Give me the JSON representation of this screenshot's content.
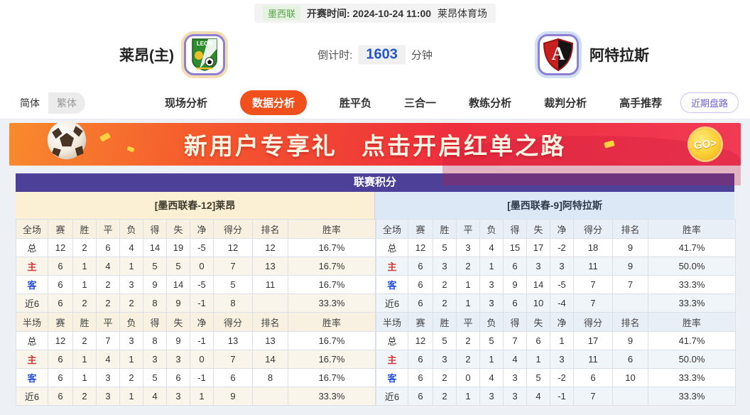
{
  "topbar": {
    "league": "墨西联",
    "kickoff": "开赛时间: 2024-10-24 11:00",
    "venue": "莱昂体育场"
  },
  "match": {
    "home_name": "莱昂(主)",
    "away_name": "阿特拉斯",
    "countdown_label": "倒计时:",
    "countdown_value": "1603",
    "countdown_unit": "分钟",
    "home_logo_text": "LEON"
  },
  "nav": {
    "lang_simplified": "简体",
    "lang_traditional": "繁体",
    "tabs": [
      {
        "label": "现场分析",
        "active": false
      },
      {
        "label": "数据分析",
        "active": true
      },
      {
        "label": "胜平负",
        "active": false
      },
      {
        "label": "三合一",
        "active": false
      },
      {
        "label": "教练分析",
        "active": false
      },
      {
        "label": "裁判分析",
        "active": false
      },
      {
        "label": "高手推荐",
        "active": false
      }
    ],
    "recent_button": "近期盘路"
  },
  "banner": {
    "text": "新用户专享礼 点击开启红单之路",
    "go_label": "GO>"
  },
  "table": {
    "title": "联赛积分",
    "home_header": "[墨西联春-12]莱昂",
    "away_header": "[墨西联春-9]阿特拉斯",
    "full_columns": [
      "全场",
      "赛",
      "胜",
      "平",
      "负",
      "得",
      "失",
      "净",
      "得分",
      "排名",
      "胜率"
    ],
    "half_columns": [
      "半场",
      "赛",
      "胜",
      "平",
      "负",
      "得",
      "失",
      "净",
      "得分",
      "排名",
      "胜率"
    ],
    "home_full": [
      [
        "总",
        "12",
        "2",
        "6",
        "4",
        "14",
        "19",
        "-5",
        "12",
        "12",
        "16.7%"
      ],
      [
        "主",
        "6",
        "1",
        "4",
        "1",
        "5",
        "5",
        "0",
        "7",
        "13",
        "16.7%"
      ],
      [
        "客",
        "6",
        "1",
        "2",
        "3",
        "9",
        "14",
        "-5",
        "5",
        "11",
        "16.7%"
      ],
      [
        "近6",
        "6",
        "2",
        "2",
        "2",
        "8",
        "9",
        "-1",
        "8",
        "",
        "33.3%"
      ]
    ],
    "home_half": [
      [
        "总",
        "12",
        "2",
        "7",
        "3",
        "8",
        "9",
        "-1",
        "13",
        "13",
        "16.7%"
      ],
      [
        "主",
        "6",
        "1",
        "4",
        "1",
        "3",
        "3",
        "0",
        "7",
        "14",
        "16.7%"
      ],
      [
        "客",
        "6",
        "1",
        "3",
        "2",
        "5",
        "6",
        "-1",
        "6",
        "8",
        "16.7%"
      ],
      [
        "近6",
        "6",
        "2",
        "3",
        "1",
        "4",
        "3",
        "1",
        "9",
        "",
        "33.3%"
      ]
    ],
    "away_full": [
      [
        "总",
        "12",
        "5",
        "3",
        "4",
        "15",
        "17",
        "-2",
        "18",
        "9",
        "41.7%"
      ],
      [
        "主",
        "6",
        "3",
        "2",
        "1",
        "6",
        "3",
        "3",
        "11",
        "9",
        "50.0%"
      ],
      [
        "客",
        "6",
        "2",
        "1",
        "3",
        "9",
        "14",
        "-5",
        "7",
        "7",
        "33.3%"
      ],
      [
        "近6",
        "6",
        "2",
        "1",
        "3",
        "6",
        "10",
        "-4",
        "7",
        "",
        "33.3%"
      ]
    ],
    "away_half": [
      [
        "总",
        "12",
        "5",
        "2",
        "5",
        "7",
        "6",
        "1",
        "17",
        "9",
        "41.7%"
      ],
      [
        "主",
        "6",
        "3",
        "2",
        "1",
        "4",
        "1",
        "3",
        "11",
        "6",
        "50.0%"
      ],
      [
        "客",
        "6",
        "2",
        "0",
        "4",
        "3",
        "5",
        "-2",
        "6",
        "10",
        "33.3%"
      ],
      [
        "近6",
        "6",
        "2",
        "1",
        "3",
        "3",
        "4",
        "-1",
        "7",
        "",
        "33.3%"
      ]
    ]
  },
  "colors": {
    "active_tab_orange": "#f0511c",
    "title_purple": "#4c4098",
    "league_green": "#55a24a",
    "countdown_blue": "#2456c9",
    "home_label_red": "#d03a3a",
    "away_label_blue": "#2b50d9",
    "home_header_cream": "#fbf0d3",
    "away_header_blue": "#dce8f5",
    "banner_orange": "#f88a2e",
    "banner_red": "#ee2f3d",
    "coin_gold": "#fccf33"
  }
}
